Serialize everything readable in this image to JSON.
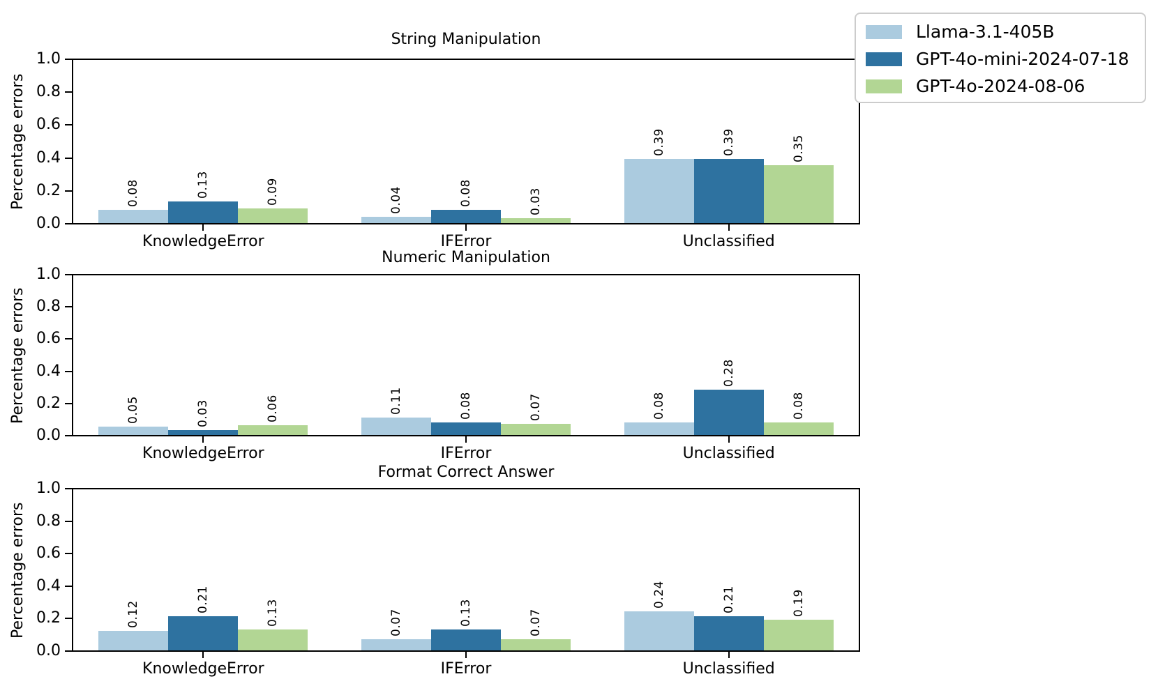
{
  "figure": {
    "ylabel": "Percentage errors",
    "legend": {
      "position": "upper right of figure",
      "items": [
        {
          "label": "Llama-3.1-405B",
          "color": "#abcbdf"
        },
        {
          "label": "GPT-4o-mini-2024-07-18",
          "color": "#2e72a0"
        },
        {
          "label": "GPT-4o-2024-08-06",
          "color": "#b2d694"
        }
      ]
    }
  },
  "chart_data": [
    {
      "type": "bar",
      "title": "String Manipulation",
      "xlabel": "",
      "ylabel": "Percentage errors",
      "ylim": [
        0.0,
        1.0
      ],
      "yticks": [
        0.0,
        0.2,
        0.4,
        0.6,
        0.8,
        1.0
      ],
      "grid": false,
      "bar_value_labels": true,
      "categories": [
        "KnowledgeError",
        "IFError",
        "Unclassified"
      ],
      "series": [
        {
          "name": "Llama-3.1-405B",
          "color": "#abcbdf",
          "values": [
            0.08,
            0.04,
            0.39
          ]
        },
        {
          "name": "GPT-4o-mini-2024-07-18",
          "color": "#2e72a0",
          "values": [
            0.13,
            0.08,
            0.39
          ]
        },
        {
          "name": "GPT-4o-2024-08-06",
          "color": "#b2d694",
          "values": [
            0.09,
            0.03,
            0.35
          ]
        }
      ]
    },
    {
      "type": "bar",
      "title": "Numeric Manipulation",
      "xlabel": "",
      "ylabel": "Percentage errors",
      "ylim": [
        0.0,
        1.0
      ],
      "yticks": [
        0.0,
        0.2,
        0.4,
        0.6,
        0.8,
        1.0
      ],
      "grid": false,
      "bar_value_labels": true,
      "categories": [
        "KnowledgeError",
        "IFError",
        "Unclassified"
      ],
      "series": [
        {
          "name": "Llama-3.1-405B",
          "color": "#abcbdf",
          "values": [
            0.05,
            0.11,
            0.08
          ]
        },
        {
          "name": "GPT-4o-mini-2024-07-18",
          "color": "#2e72a0",
          "values": [
            0.03,
            0.08,
            0.28
          ]
        },
        {
          "name": "GPT-4o-2024-08-06",
          "color": "#b2d694",
          "values": [
            0.06,
            0.07,
            0.08
          ]
        }
      ]
    },
    {
      "type": "bar",
      "title": "Format Correct Answer",
      "xlabel": "",
      "ylabel": "Percentage errors",
      "ylim": [
        0.0,
        1.0
      ],
      "yticks": [
        0.0,
        0.2,
        0.4,
        0.6,
        0.8,
        1.0
      ],
      "grid": false,
      "bar_value_labels": true,
      "categories": [
        "KnowledgeError",
        "IFError",
        "Unclassified"
      ],
      "series": [
        {
          "name": "Llama-3.1-405B",
          "color": "#abcbdf",
          "values": [
            0.12,
            0.07,
            0.24
          ]
        },
        {
          "name": "GPT-4o-mini-2024-07-18",
          "color": "#2e72a0",
          "values": [
            0.21,
            0.13,
            0.21
          ]
        },
        {
          "name": "GPT-4o-2024-08-06",
          "color": "#b2d694",
          "values": [
            0.13,
            0.07,
            0.19
          ]
        }
      ]
    }
  ]
}
